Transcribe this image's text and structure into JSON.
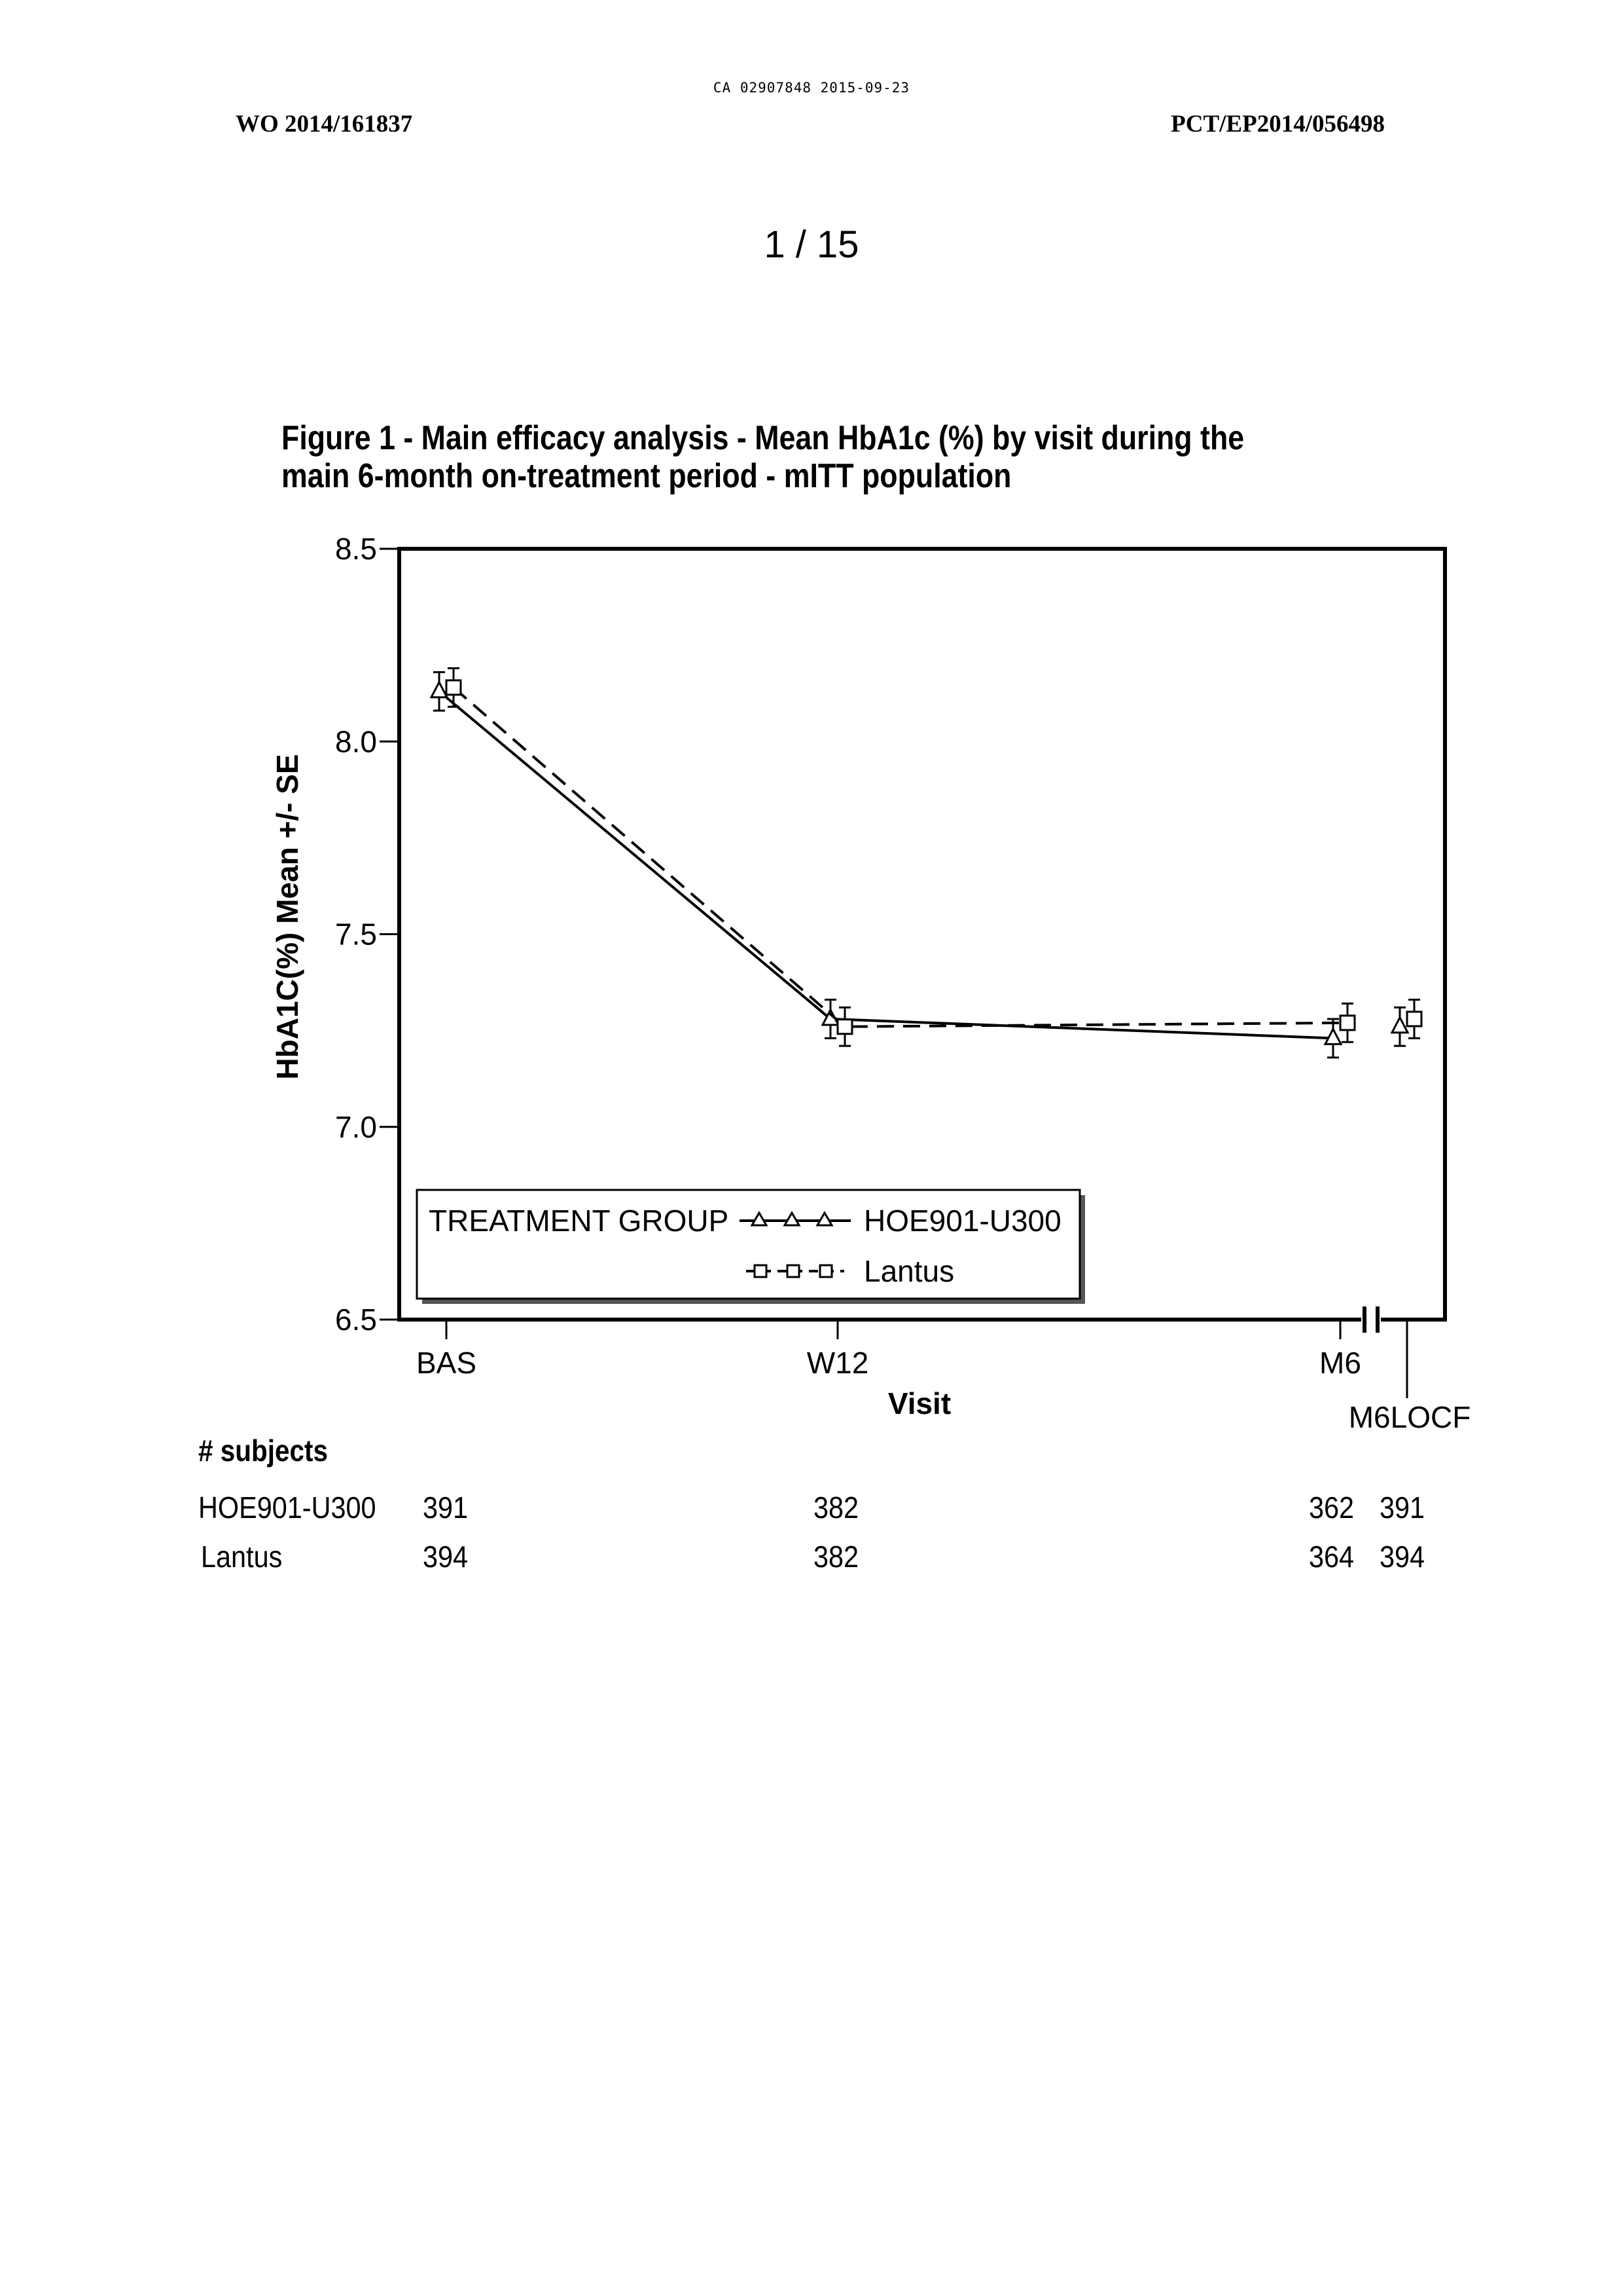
{
  "page": {
    "stamp": "CA 02907848 2015-09-23",
    "header_left": "WO 2014/161837",
    "header_right": "PCT/EP2014/056498",
    "page_number": "1 / 15",
    "caption": "Figure 1 - Main efficacy analysis - Mean HbA1c (%) by visit during the main 6-month on-treatment period - mITT population"
  },
  "chart_data": {
    "type": "line",
    "title": "",
    "xlabel": "Visit",
    "ylabel": "HbA1C(%) Mean +/- SE",
    "categories": [
      "BAS",
      "W12",
      "M6",
      "M6LOCF"
    ],
    "ylim": [
      6.5,
      8.5
    ],
    "yticks": [
      "6.5",
      "7.0",
      "7.5",
      "8.0",
      "8.5"
    ],
    "axis_break_between": [
      "M6",
      "M6LOCF"
    ],
    "legend": {
      "title": "TREATMENT GROUP",
      "placement": "bottom-left",
      "entries": [
        "HOE901-U300",
        "Lantus"
      ]
    },
    "series": [
      {
        "name": "HOE901-U300",
        "marker": "triangle",
        "line_style": "solid",
        "values": [
          8.13,
          7.28,
          7.23,
          7.26
        ],
        "se": [
          0.05,
          0.05,
          0.05,
          0.05
        ],
        "connected_points": 3
      },
      {
        "name": "Lantus",
        "marker": "square",
        "line_style": "dashed",
        "values": [
          8.14,
          7.26,
          7.27,
          7.28
        ],
        "se": [
          0.05,
          0.05,
          0.05,
          0.05
        ],
        "connected_points": 3
      }
    ]
  },
  "subjects": {
    "title": "# subjects",
    "rows": [
      {
        "label": "HOE901-U300",
        "counts": [
          "391",
          "382",
          "362",
          "391"
        ]
      },
      {
        "label": "Lantus",
        "counts": [
          "394",
          "382",
          "364",
          "394"
        ]
      }
    ]
  }
}
